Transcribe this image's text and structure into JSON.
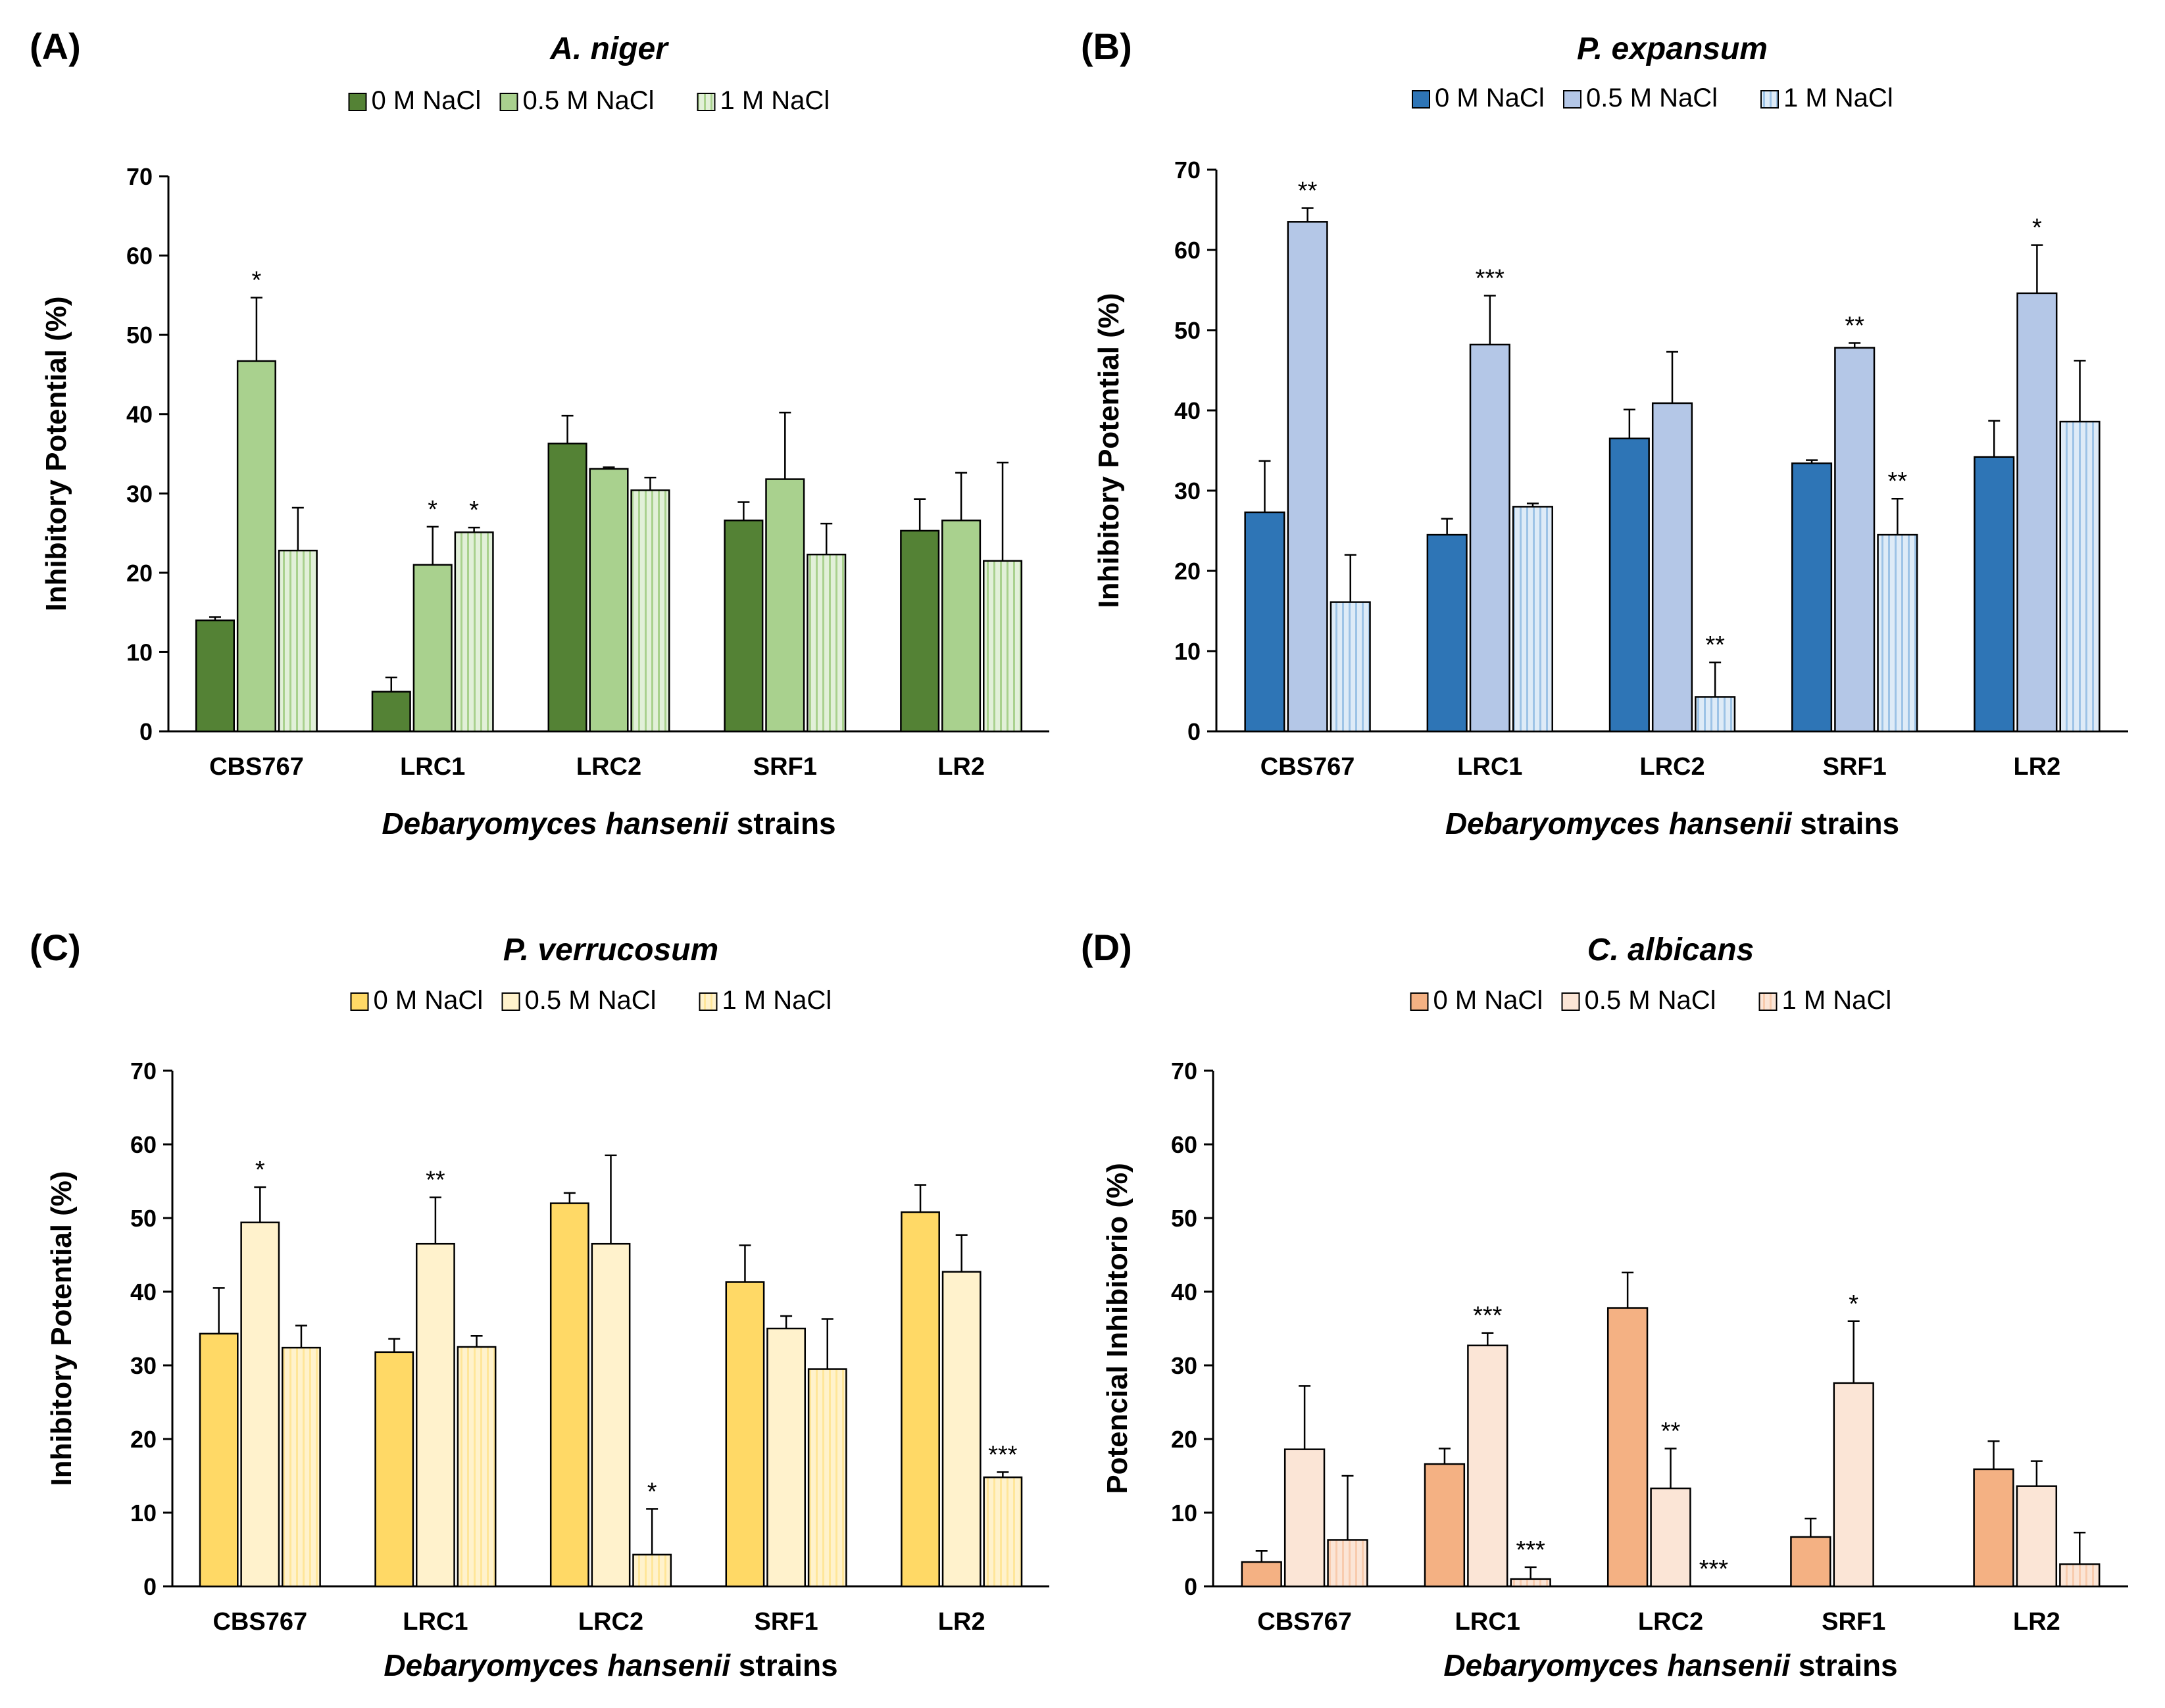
{
  "chart_data": [
    {
      "panel": "(A)",
      "type": "bar",
      "title": "A. niger",
      "xlabel_italic": "Debaryomyces hansenii",
      "xlabel_rest": " strains",
      "ylabel": "Inhibitory Potential (%)",
      "ylim": [
        0,
        70
      ],
      "yticks": [
        0,
        10,
        20,
        30,
        40,
        50,
        60,
        70
      ],
      "categories": [
        "CBS767",
        "LRC1",
        "LRC2",
        "SRF1",
        "LR2"
      ],
      "colors": [
        "#548235",
        "#a9d18e",
        "#e2f0d9"
      ],
      "series": [
        {
          "name": "0 M NaCl",
          "values": [
            14,
            5,
            36.3,
            26.6,
            25.3
          ],
          "errors": [
            0.4,
            1.8,
            3.5,
            2.3,
            4.0
          ],
          "stars": [
            "",
            "",
            "",
            "",
            ""
          ]
        },
        {
          "name": "0.5 M NaCl",
          "values": [
            46.7,
            21.0,
            33.1,
            31.8,
            26.6
          ],
          "errors": [
            8.0,
            4.8,
            0.2,
            8.4,
            6.0
          ],
          "stars": [
            "*",
            "*",
            "",
            "",
            ""
          ]
        },
        {
          "name": "1 M NaCl",
          "values": [
            22.8,
            25.1,
            30.4,
            22.3,
            21.5
          ],
          "errors": [
            5.4,
            0.6,
            1.6,
            3.9,
            12.4
          ],
          "stars": [
            "",
            "*",
            "",
            "",
            ""
          ]
        }
      ]
    },
    {
      "panel": "(B)",
      "type": "bar",
      "title": "P. expansum",
      "xlabel_italic": "Debaryomyces hansenii",
      "xlabel_rest": " strains",
      "ylabel": "Inhibitory Potential (%)",
      "ylim": [
        0,
        70
      ],
      "yticks": [
        0,
        10,
        20,
        30,
        40,
        50,
        60,
        70
      ],
      "categories": [
        "CBS767",
        "LRC1",
        "LRC2",
        "SRF1",
        "LR2"
      ],
      "colors": [
        "#2e75b6",
        "#b4c7e7",
        "#deebf7"
      ],
      "series": [
        {
          "name": "0 M NaCl",
          "values": [
            27.3,
            24.5,
            36.5,
            33.4,
            34.2
          ],
          "errors": [
            6.4,
            2.0,
            3.6,
            0.4,
            4.5
          ],
          "stars": [
            "",
            "",
            "",
            "",
            ""
          ]
        },
        {
          "name": "0.5 M NaCl",
          "values": [
            63.5,
            48.2,
            40.9,
            47.8,
            54.6
          ],
          "errors": [
            1.7,
            6.1,
            6.4,
            0.6,
            6.0
          ],
          "stars": [
            "**",
            "***",
            "",
            "**",
            "*"
          ]
        },
        {
          "name": "1 M NaCl",
          "values": [
            16.1,
            28.0,
            4.3,
            24.5,
            38.6
          ],
          "errors": [
            5.9,
            0.4,
            4.3,
            4.5,
            7.6
          ],
          "stars": [
            "",
            "",
            "**",
            "**",
            ""
          ]
        }
      ]
    },
    {
      "panel": "(C)",
      "type": "bar",
      "title": "P. verrucosum",
      "xlabel_italic": "Debaryomyces hansenii",
      "xlabel_rest": " strains",
      "ylabel": "Inhibitory Potential (%)",
      "ylim": [
        0,
        70
      ],
      "yticks": [
        0,
        10,
        20,
        30,
        40,
        50,
        60,
        70
      ],
      "categories": [
        "CBS767",
        "LRC1",
        "LRC2",
        "SRF1",
        "LR2"
      ],
      "colors": [
        "#ffd966",
        "#fff2cc",
        "#fff2cc"
      ],
      "series": [
        {
          "name": "0 M NaCl",
          "values": [
            34.3,
            31.8,
            52.0,
            41.3,
            50.8
          ],
          "errors": [
            6.2,
            1.8,
            1.4,
            5.0,
            3.7
          ],
          "stars": [
            "",
            "",
            "",
            "",
            ""
          ]
        },
        {
          "name": "0.5 M NaCl",
          "values": [
            49.4,
            46.5,
            46.5,
            35.0,
            42.7
          ],
          "errors": [
            4.8,
            6.3,
            12.0,
            1.7,
            5.0
          ],
          "stars": [
            "*",
            "**",
            "",
            "",
            ""
          ]
        },
        {
          "name": "1 M NaCl",
          "values": [
            32.4,
            32.5,
            4.3,
            29.5,
            14.8
          ],
          "errors": [
            3.0,
            1.5,
            6.2,
            6.8,
            0.7
          ],
          "stars": [
            "",
            "",
            "*",
            "",
            "***"
          ]
        }
      ]
    },
    {
      "panel": "(D)",
      "type": "bar",
      "title": "C. albicans",
      "xlabel_italic": "Debaryomyces hansenii",
      "xlabel_rest": " strains",
      "ylabel": "Potencial Inhibitorio (%)",
      "ylim": [
        0,
        70
      ],
      "yticks": [
        0,
        10,
        20,
        30,
        40,
        50,
        60,
        70
      ],
      "categories": [
        "CBS767",
        "LRC1",
        "LRC2",
        "SRF1",
        "LR2"
      ],
      "colors": [
        "#f4b183",
        "#fbe5d6",
        "#fbe5d6"
      ],
      "series": [
        {
          "name": "0 M NaCl",
          "values": [
            3.3,
            16.6,
            37.8,
            6.7,
            15.9
          ],
          "errors": [
            1.5,
            2.1,
            4.8,
            2.5,
            3.8
          ],
          "stars": [
            "",
            "",
            "",
            "",
            ""
          ]
        },
        {
          "name": "0.5 M NaCl",
          "values": [
            18.6,
            32.7,
            13.3,
            27.6,
            13.6
          ],
          "errors": [
            8.6,
            1.7,
            5.4,
            8.4,
            3.4
          ],
          "stars": [
            "",
            "***",
            "**",
            "*",
            ""
          ]
        },
        {
          "name": "1 M NaCl",
          "values": [
            6.3,
            1.0,
            0,
            null,
            3.0
          ],
          "errors": [
            8.7,
            1.6,
            0,
            0,
            4.3
          ],
          "stars": [
            "",
            "***",
            "***",
            "",
            ""
          ]
        }
      ]
    }
  ]
}
